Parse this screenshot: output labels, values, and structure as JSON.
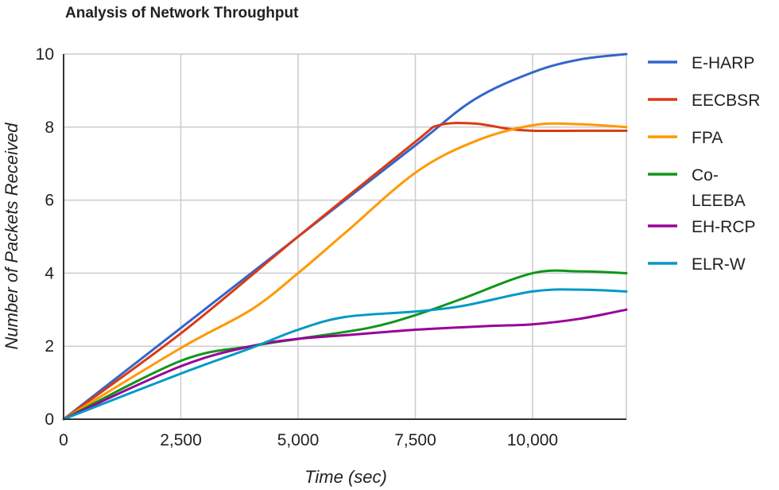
{
  "chart_data": {
    "type": "line",
    "title": "Analysis of Network Throughput",
    "xlabel": "Time (sec)",
    "ylabel": "Number of Packets Received",
    "xlim": [
      0,
      12000
    ],
    "ylim": [
      0,
      10
    ],
    "x_ticks": [
      0,
      2500,
      5000,
      7500,
      10000
    ],
    "x_tick_labels": [
      "0",
      "2,500",
      "5,000",
      "7,500",
      "10,000"
    ],
    "y_ticks": [
      0,
      2,
      4,
      6,
      8,
      10
    ],
    "y_tick_labels": [
      "0",
      "2",
      "4",
      "6",
      "8",
      "10"
    ],
    "grid": true,
    "legend_position": "right",
    "series": [
      {
        "name": "E-HARP",
        "color": "#3366cc",
        "x": [
          0,
          2500,
          5000,
          7500,
          8750,
          10000,
          11000,
          12000
        ],
        "y": [
          0,
          2.5,
          5.0,
          7.5,
          8.75,
          9.5,
          9.85,
          10.0
        ]
      },
      {
        "name": "EECBSR",
        "color": "#dc3912",
        "x": [
          0,
          2500,
          5000,
          7500,
          8000,
          8750,
          9500,
          10000,
          11000,
          12000
        ],
        "y": [
          0,
          2.35,
          5.0,
          7.6,
          8.05,
          8.1,
          7.95,
          7.9,
          7.9,
          7.9
        ]
      },
      {
        "name": "FPA",
        "color": "#ff9900",
        "x": [
          0,
          2500,
          4000,
          5000,
          6000,
          7500,
          8750,
          10000,
          11000,
          12000
        ],
        "y": [
          0,
          1.95,
          3.0,
          4.0,
          5.1,
          6.75,
          7.6,
          8.05,
          8.08,
          8.0
        ]
      },
      {
        "name": "Co-LEEBA",
        "color": "#109618",
        "x": [
          0,
          2500,
          4000,
          5000,
          6500,
          7500,
          8500,
          10000,
          11000,
          12000
        ],
        "y": [
          0,
          1.6,
          2.0,
          2.2,
          2.5,
          2.85,
          3.3,
          4.0,
          4.05,
          4.0
        ]
      },
      {
        "name": "EH-RCP",
        "color": "#990099",
        "x": [
          0,
          2500,
          4000,
          5000,
          6000,
          7500,
          9000,
          10000,
          11000,
          12000
        ],
        "y": [
          0,
          1.45,
          2.0,
          2.2,
          2.3,
          2.45,
          2.55,
          2.6,
          2.75,
          3.0
        ]
      },
      {
        "name": "ELR-W",
        "color": "#0099c6",
        "x": [
          0,
          2500,
          4000,
          5000,
          6000,
          7500,
          8500,
          10000,
          11000,
          12000
        ],
        "y": [
          0,
          1.25,
          1.95,
          2.45,
          2.8,
          2.95,
          3.1,
          3.5,
          3.55,
          3.5
        ]
      }
    ],
    "legend_labels": [
      {
        "lines": [
          "E-HARP"
        ]
      },
      {
        "lines": [
          "EECBSR"
        ]
      },
      {
        "lines": [
          "FPA"
        ]
      },
      {
        "lines": [
          "Co-",
          "LEEBA"
        ]
      },
      {
        "lines": [
          "EH-RCP"
        ]
      },
      {
        "lines": [
          "ELR-W"
        ]
      }
    ]
  }
}
